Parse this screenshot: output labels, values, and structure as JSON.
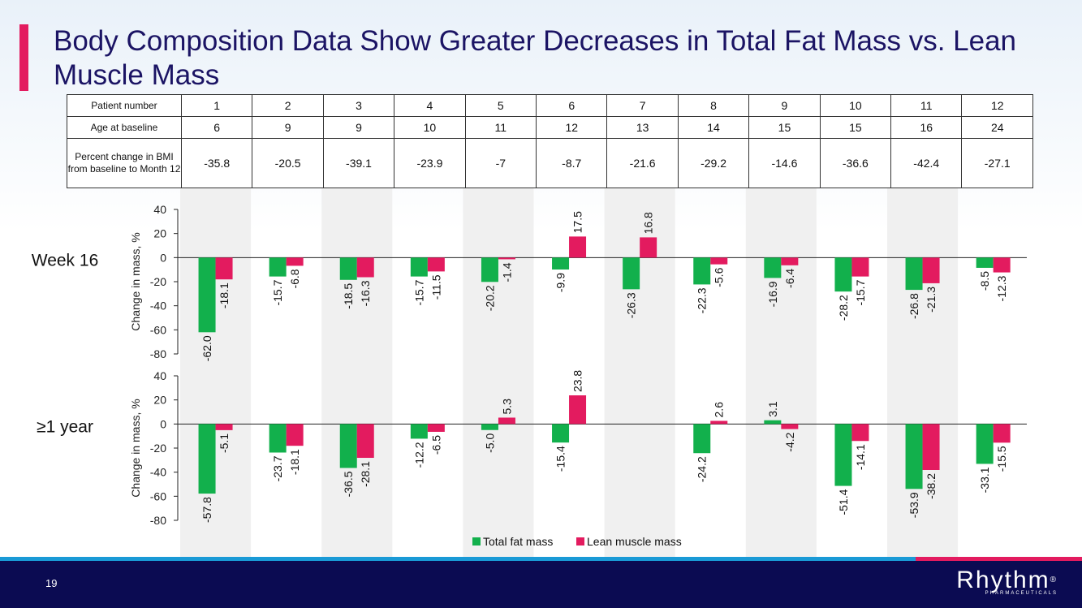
{
  "slide": {
    "title": "Body Composition Data Show Greater Decreases in Total Fat Mass vs. Lean Muscle Mass",
    "page_number": "19",
    "logo_text": "Rhythm",
    "logo_reg": "®",
    "logo_subtext": "PHARMACEUTICALS"
  },
  "patient_table": {
    "row_headers": [
      "Patient number",
      "Age at baseline",
      "Percent change in BMI from baseline to Month 12"
    ],
    "patient_numbers": [
      "1",
      "2",
      "3",
      "4",
      "5",
      "6",
      "7",
      "8",
      "9",
      "10",
      "11",
      "12"
    ],
    "ages": [
      "6",
      "9",
      "9",
      "10",
      "11",
      "12",
      "13",
      "14",
      "15",
      "15",
      "16",
      "24"
    ],
    "bmi_change": [
      "-35.8",
      "-20.5",
      "-39.1",
      "-23.9",
      "-7",
      "-8.7",
      "-21.6",
      "-29.2",
      "-14.6",
      "-36.6",
      "-42.4",
      "-27.1"
    ]
  },
  "colors": {
    "fat": "#12b04c",
    "lean": "#e31b5f",
    "shade": "#f0f0f0",
    "title": "#1b1464",
    "accent": "#e31b5f",
    "footer": "#0b0b52",
    "footer_line_blue": "#1a9ad6"
  },
  "chart_data": [
    {
      "type": "bar",
      "panel_label": "Week 16",
      "ylabel": "Change in mass, %",
      "ylim": [
        -80,
        40
      ],
      "yticks": [
        40,
        20,
        0,
        -20,
        -40,
        -60,
        -80
      ],
      "categories": [
        "1",
        "2",
        "3",
        "4",
        "5",
        "6",
        "7",
        "8",
        "9",
        "10",
        "11",
        "12"
      ],
      "series": [
        {
          "name": "Total fat mass",
          "values": [
            -62.0,
            -15.7,
            -18.5,
            -15.7,
            -20.2,
            -9.9,
            -26.3,
            -22.3,
            -16.9,
            -28.2,
            -26.8,
            -8.5
          ],
          "labels": [
            "-62.0",
            "-15.7",
            "-18.5",
            "-15.7",
            "-20.2",
            "-9.9",
            "-26.3",
            "-22.3",
            "-16.9",
            "-28.2",
            "-26.8",
            "-8.5"
          ]
        },
        {
          "name": "Lean muscle mass",
          "values": [
            -18.1,
            -6.8,
            -16.3,
            -11.5,
            -1.4,
            17.5,
            16.8,
            -5.6,
            -6.4,
            -15.7,
            -21.3,
            -12.3
          ],
          "labels": [
            "-18.1",
            "-6.8",
            "-16.3",
            "-11.5",
            "-1.4",
            "17.5",
            "16.8",
            "-5.6",
            "-6.4",
            "-15.7",
            "-21.3",
            "-12.3"
          ]
        }
      ]
    },
    {
      "type": "bar",
      "panel_label": "≥1 year",
      "ylabel": "Change in mass, %",
      "ylim": [
        -80,
        40
      ],
      "yticks": [
        40,
        20,
        0,
        -20,
        -40,
        -60,
        -80
      ],
      "categories": [
        "1",
        "2",
        "3",
        "4",
        "5",
        "6",
        "7",
        "8",
        "9",
        "10",
        "11",
        "12"
      ],
      "series": [
        {
          "name": "Total fat mass",
          "values": [
            -57.8,
            -23.7,
            -36.5,
            -12.2,
            -5.0,
            -15.4,
            null,
            -24.2,
            3.1,
            -51.4,
            -53.9,
            -33.1
          ],
          "labels": [
            "-57.8",
            "-23.7",
            "-36.5",
            "-12.2",
            "-5.0",
            "-15.4",
            null,
            "-24.2",
            "3.1",
            "-51.4",
            "-53.9",
            "-33.1"
          ]
        },
        {
          "name": "Lean muscle mass",
          "values": [
            -5.1,
            -18.1,
            -28.1,
            -6.5,
            5.3,
            23.8,
            null,
            2.6,
            -4.2,
            -14.1,
            -38.2,
            -15.5
          ],
          "labels": [
            "-5.1",
            "-18.1",
            "-28.1",
            "-6.5",
            "5.3",
            "23.8",
            null,
            "2.6",
            "-4.2",
            "-14.1",
            "-38.2",
            "-15.5"
          ]
        }
      ]
    }
  ],
  "legend": {
    "items": [
      {
        "name": "Total fat mass",
        "color": "#12b04c"
      },
      {
        "name": "Lean muscle mass",
        "color": "#e31b5f"
      }
    ]
  }
}
